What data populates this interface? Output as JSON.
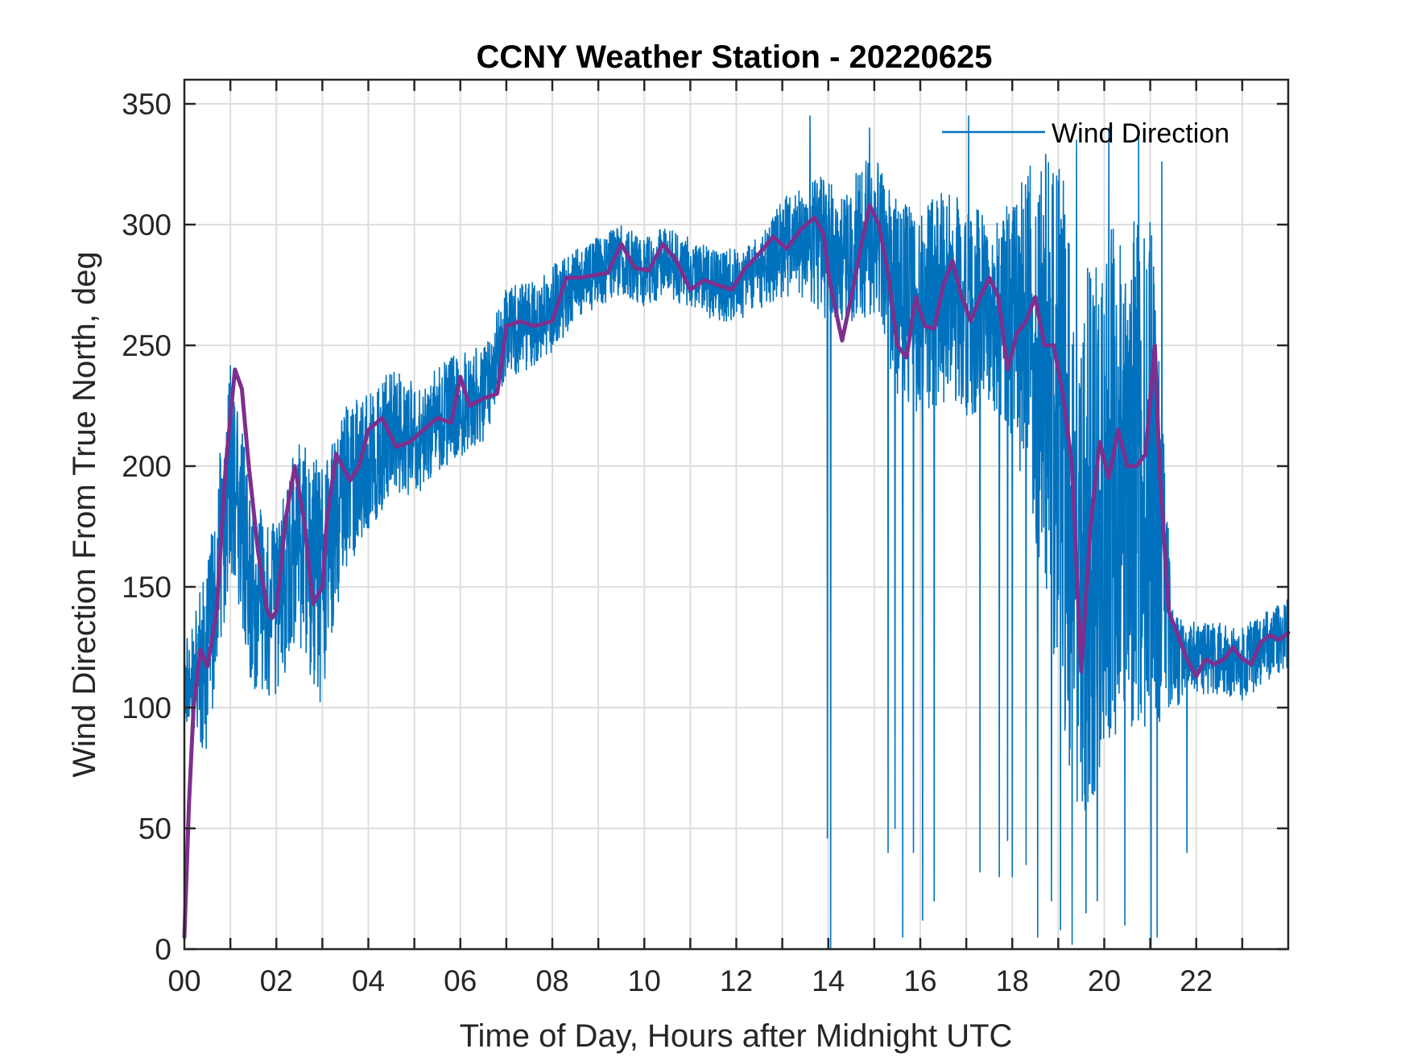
{
  "chart_data": {
    "type": "line",
    "title": "CCNY Weather Station - 20220625",
    "xlabel": "Time of Day, Hours after Midnight UTC",
    "ylabel": "Wind Direction From True North, deg",
    "xlim": [
      0,
      24
    ],
    "ylim": [
      0,
      360
    ],
    "x_ticks": [
      0,
      2,
      4,
      6,
      8,
      10,
      12,
      14,
      16,
      18,
      20,
      22
    ],
    "x_tick_labels": [
      "00",
      "02",
      "04",
      "06",
      "08",
      "10",
      "12",
      "14",
      "16",
      "18",
      "20",
      "22"
    ],
    "x_minor_grid_step": 1,
    "y_ticks": [
      0,
      50,
      100,
      150,
      200,
      250,
      300,
      350
    ],
    "y_tick_labels": [
      "0",
      "50",
      "100",
      "150",
      "200",
      "250",
      "300",
      "350"
    ],
    "grid": true,
    "legend": {
      "placement": "top-right",
      "entries": [
        "Wind Direction"
      ]
    },
    "series": [
      {
        "name": "Wind Direction",
        "kind": "raw",
        "color": "#0072BD",
        "x": [
          0.0,
          0.5,
          1.0,
          1.5,
          2.0,
          2.5,
          3.0,
          3.5,
          4.0,
          4.5,
          5.0,
          5.5,
          6.0,
          6.5,
          7.0,
          7.5,
          8.0,
          8.5,
          9.0,
          9.5,
          10.0,
          10.5,
          11.0,
          11.5,
          12.0,
          12.5,
          13.0,
          13.5,
          14.0,
          14.5,
          15.0,
          15.5,
          16.0,
          16.5,
          17.0,
          17.5,
          18.0,
          18.5,
          19.0,
          19.5,
          20.0,
          20.5,
          21.0,
          21.5,
          22.0,
          22.5,
          23.0,
          23.5,
          24.0
        ],
        "y": [
          110,
          120,
          200,
          145,
          140,
          170,
          150,
          190,
          200,
          215,
          210,
          220,
          225,
          230,
          255,
          258,
          265,
          275,
          280,
          285,
          280,
          285,
          280,
          275,
          275,
          280,
          290,
          295,
          290,
          290,
          295,
          270,
          260,
          270,
          265,
          265,
          260,
          250,
          220,
          160,
          190,
          190,
          200,
          120,
          120,
          120,
          118,
          125,
          130
        ],
        "spread": [
          15,
          40,
          45,
          40,
          35,
          45,
          50,
          35,
          30,
          25,
          25,
          22,
          22,
          20,
          20,
          18,
          18,
          15,
          15,
          15,
          15,
          15,
          15,
          15,
          15,
          15,
          20,
          25,
          30,
          30,
          35,
          40,
          45,
          45,
          45,
          40,
          50,
          80,
          110,
          120,
          110,
          110,
          110,
          20,
          15,
          15,
          15,
          15,
          15
        ],
        "sample_step_hours": 0.006,
        "drops": [
          {
            "x": 13.98,
            "y": 46
          },
          {
            "x": 14.05,
            "y": 0
          },
          {
            "x": 15.3,
            "y": 40
          },
          {
            "x": 15.45,
            "y": 50
          },
          {
            "x": 15.62,
            "y": 5
          },
          {
            "x": 15.85,
            "y": 40
          },
          {
            "x": 16.05,
            "y": 12
          },
          {
            "x": 16.3,
            "y": 20
          },
          {
            "x": 17.3,
            "y": 32
          },
          {
            "x": 17.72,
            "y": 30
          },
          {
            "x": 17.9,
            "y": 45
          },
          {
            "x": 18.0,
            "y": 30
          },
          {
            "x": 18.3,
            "y": 35
          },
          {
            "x": 18.55,
            "y": 5
          },
          {
            "x": 18.85,
            "y": 20
          },
          {
            "x": 19.05,
            "y": 8
          },
          {
            "x": 19.3,
            "y": 2
          },
          {
            "x": 19.6,
            "y": 15
          },
          {
            "x": 19.85,
            "y": 20
          },
          {
            "x": 20.1,
            "y": 5
          },
          {
            "x": 20.45,
            "y": 10
          },
          {
            "x": 20.75,
            "y": 5
          },
          {
            "x": 21.02,
            "y": 0
          },
          {
            "x": 21.15,
            "y": 5
          },
          {
            "x": 21.25,
            "y": 3
          },
          {
            "x": 21.8,
            "y": 40
          }
        ],
        "spikes": [
          {
            "x": 13.6,
            "y": 345
          },
          {
            "x": 14.9,
            "y": 340
          },
          {
            "x": 17.05,
            "y": 345
          },
          {
            "x": 19.4,
            "y": 335
          },
          {
            "x": 20.1,
            "y": 340
          },
          {
            "x": 20.75,
            "y": 338
          },
          {
            "x": 21.25,
            "y": 326
          }
        ]
      },
      {
        "name": "",
        "kind": "smoothed",
        "color": "#7E2F8E",
        "x": [
          0.0,
          0.1,
          0.2,
          0.35,
          0.5,
          0.7,
          0.9,
          1.0,
          1.1,
          1.25,
          1.4,
          1.6,
          1.8,
          1.9,
          2.0,
          2.2,
          2.4,
          2.6,
          2.8,
          3.0,
          3.1,
          3.3,
          3.6,
          3.8,
          4.0,
          4.3,
          4.6,
          4.9,
          5.2,
          5.5,
          5.8,
          6.0,
          6.2,
          6.5,
          6.8,
          7.0,
          7.3,
          7.6,
          8.0,
          8.3,
          8.6,
          8.9,
          9.2,
          9.5,
          9.8,
          10.1,
          10.4,
          10.7,
          11.0,
          11.3,
          11.6,
          11.9,
          12.2,
          12.5,
          12.8,
          13.1,
          13.4,
          13.7,
          13.9,
          14.0,
          14.1,
          14.3,
          14.5,
          14.7,
          14.9,
          15.1,
          15.3,
          15.5,
          15.7,
          15.9,
          16.1,
          16.3,
          16.5,
          16.7,
          16.9,
          17.1,
          17.3,
          17.5,
          17.7,
          17.9,
          18.1,
          18.3,
          18.5,
          18.7,
          18.9,
          19.1,
          19.3,
          19.5,
          19.7,
          19.9,
          20.1,
          20.3,
          20.5,
          20.7,
          20.9,
          21.1,
          21.2,
          21.4,
          21.6,
          21.8,
          22.0,
          22.2,
          22.4,
          22.6,
          22.8,
          23.0,
          23.2,
          23.4,
          23.6,
          23.8,
          24.0
        ],
        "y": [
          5,
          60,
          100,
          124,
          117,
          140,
          200,
          220,
          240,
          232,
          200,
          165,
          140,
          137,
          140,
          178,
          200,
          178,
          143,
          150,
          178,
          205,
          194,
          200,
          215,
          220,
          208,
          210,
          215,
          220,
          218,
          237,
          225,
          228,
          230,
          258,
          260,
          258,
          260,
          278,
          278,
          279,
          280,
          292,
          282,
          281,
          292,
          285,
          273,
          277,
          275,
          273,
          282,
          288,
          295,
          290,
          298,
          303,
          296,
          280,
          270,
          252,
          270,
          290,
          308,
          300,
          280,
          250,
          245,
          270,
          258,
          257,
          275,
          285,
          270,
          260,
          270,
          278,
          270,
          240,
          255,
          260,
          270,
          250,
          250,
          230,
          200,
          115,
          175,
          210,
          195,
          215,
          200,
          200,
          205,
          250,
          200,
          140,
          130,
          120,
          113,
          120,
          118,
          120,
          125,
          120,
          118,
          127,
          130,
          128,
          131
        ]
      }
    ]
  }
}
